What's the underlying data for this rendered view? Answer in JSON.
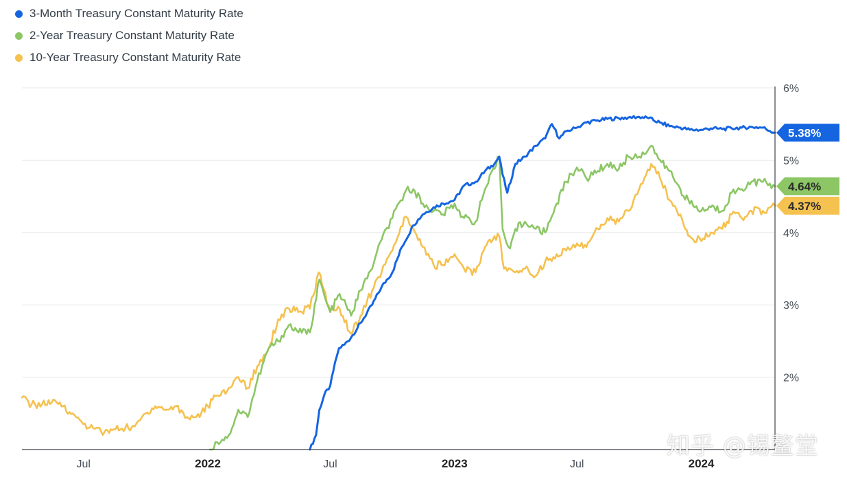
{
  "legend": [
    {
      "label": "3-Month Treasury Constant Maturity Rate",
      "color": "#1565e0"
    },
    {
      "label": "2-Year Treasury Constant Maturity Rate",
      "color": "#8cc665"
    },
    {
      "label": "10-Year Treasury Constant Maturity Rate",
      "color": "#f5c14f"
    }
  ],
  "watermark": "知乎 @锡鳌堂",
  "chart_data": {
    "type": "line",
    "x_axis": {
      "start": "2021-04-01",
      "end": "2024-04-19",
      "ticks": [
        {
          "date": "2021-07-01",
          "label": "Jul",
          "bold": false
        },
        {
          "date": "2022-01-01",
          "label": "2022",
          "bold": true
        },
        {
          "date": "2022-07-01",
          "label": "Jul",
          "bold": false
        },
        {
          "date": "2023-01-01",
          "label": "2023",
          "bold": true
        },
        {
          "date": "2023-07-01",
          "label": "Jul",
          "bold": false
        },
        {
          "date": "2024-01-01",
          "label": "2024",
          "bold": true
        }
      ]
    },
    "y_axis": {
      "min": 1.0,
      "max": 6.0,
      "position": "right",
      "ticks": [
        {
          "value": 2,
          "label": "2%"
        },
        {
          "value": 3,
          "label": "3%"
        },
        {
          "value": 4,
          "label": "4%"
        },
        {
          "value": 5,
          "label": "5%"
        },
        {
          "value": 6,
          "label": "6%"
        }
      ]
    },
    "grid": true,
    "legend_position": "top-left",
    "series": [
      {
        "name": "3-Month Treasury Constant Maturity Rate",
        "color": "#1565e0",
        "last_label": "5.38%",
        "points": [
          [
            "2022-06-01",
            1.0
          ],
          [
            "2022-06-10",
            1.2
          ],
          [
            "2022-06-15",
            1.55
          ],
          [
            "2022-06-22",
            1.75
          ],
          [
            "2022-07-01",
            1.88
          ],
          [
            "2022-07-08",
            2.2
          ],
          [
            "2022-07-14",
            2.4
          ],
          [
            "2022-07-22",
            2.45
          ],
          [
            "2022-08-01",
            2.55
          ],
          [
            "2022-08-15",
            2.75
          ],
          [
            "2022-09-01",
            3.0
          ],
          [
            "2022-09-15",
            3.25
          ],
          [
            "2022-10-01",
            3.45
          ],
          [
            "2022-10-15",
            3.8
          ],
          [
            "2022-11-01",
            4.1
          ],
          [
            "2022-11-15",
            4.25
          ],
          [
            "2022-12-01",
            4.35
          ],
          [
            "2022-12-15",
            4.4
          ],
          [
            "2023-01-01",
            4.45
          ],
          [
            "2023-01-15",
            4.65
          ],
          [
            "2023-02-01",
            4.7
          ],
          [
            "2023-02-15",
            4.85
          ],
          [
            "2023-03-01",
            4.95
          ],
          [
            "2023-03-08",
            5.05
          ],
          [
            "2023-03-13",
            4.8
          ],
          [
            "2023-03-20",
            4.55
          ],
          [
            "2023-04-01",
            4.95
          ],
          [
            "2023-04-15",
            5.05
          ],
          [
            "2023-05-01",
            5.2
          ],
          [
            "2023-05-15",
            5.3
          ],
          [
            "2023-05-25",
            5.5
          ],
          [
            "2023-06-05",
            5.3
          ],
          [
            "2023-06-15",
            5.4
          ],
          [
            "2023-07-01",
            5.45
          ],
          [
            "2023-07-15",
            5.52
          ],
          [
            "2023-08-01",
            5.55
          ],
          [
            "2023-08-15",
            5.57
          ],
          [
            "2023-09-01",
            5.58
          ],
          [
            "2023-09-15",
            5.59
          ],
          [
            "2023-10-01",
            5.6
          ],
          [
            "2023-10-15",
            5.58
          ],
          [
            "2023-11-01",
            5.52
          ],
          [
            "2023-11-15",
            5.47
          ],
          [
            "2023-12-01",
            5.45
          ],
          [
            "2023-12-15",
            5.42
          ],
          [
            "2024-01-01",
            5.42
          ],
          [
            "2024-01-15",
            5.44
          ],
          [
            "2024-02-01",
            5.43
          ],
          [
            "2024-02-15",
            5.44
          ],
          [
            "2024-03-01",
            5.45
          ],
          [
            "2024-03-15",
            5.46
          ],
          [
            "2024-04-01",
            5.45
          ],
          [
            "2024-04-19",
            5.38
          ]
        ]
      },
      {
        "name": "2-Year Treasury Constant Maturity Rate",
        "color": "#8cc665",
        "last_label": "4.64%",
        "points": [
          [
            "2022-01-04",
            1.0
          ],
          [
            "2022-01-15",
            1.1
          ],
          [
            "2022-02-01",
            1.2
          ],
          [
            "2022-02-15",
            1.55
          ],
          [
            "2022-03-01",
            1.45
          ],
          [
            "2022-03-15",
            1.95
          ],
          [
            "2022-04-01",
            2.4
          ],
          [
            "2022-04-15",
            2.5
          ],
          [
            "2022-05-01",
            2.72
          ],
          [
            "2022-05-15",
            2.62
          ],
          [
            "2022-06-01",
            2.62
          ],
          [
            "2022-06-15",
            3.35
          ],
          [
            "2022-06-25",
            3.05
          ],
          [
            "2022-07-01",
            2.9
          ],
          [
            "2022-07-15",
            3.15
          ],
          [
            "2022-08-01",
            2.85
          ],
          [
            "2022-08-15",
            3.2
          ],
          [
            "2022-09-01",
            3.5
          ],
          [
            "2022-09-15",
            3.9
          ],
          [
            "2022-10-01",
            4.2
          ],
          [
            "2022-10-21",
            4.58
          ],
          [
            "2022-11-01",
            4.6
          ],
          [
            "2022-11-15",
            4.4
          ],
          [
            "2022-12-01",
            4.3
          ],
          [
            "2022-12-15",
            4.25
          ],
          [
            "2023-01-01",
            4.4
          ],
          [
            "2023-01-15",
            4.2
          ],
          [
            "2023-02-01",
            4.15
          ],
          [
            "2023-02-15",
            4.6
          ],
          [
            "2023-03-01",
            4.88
          ],
          [
            "2023-03-08",
            5.05
          ],
          [
            "2023-03-13",
            4.05
          ],
          [
            "2023-03-24",
            3.78
          ],
          [
            "2023-04-01",
            4.05
          ],
          [
            "2023-04-15",
            4.15
          ],
          [
            "2023-05-01",
            4.05
          ],
          [
            "2023-05-15",
            4.0
          ],
          [
            "2023-06-01",
            4.4
          ],
          [
            "2023-06-15",
            4.7
          ],
          [
            "2023-07-01",
            4.9
          ],
          [
            "2023-07-15",
            4.75
          ],
          [
            "2023-08-01",
            4.85
          ],
          [
            "2023-08-15",
            4.95
          ],
          [
            "2023-09-01",
            4.88
          ],
          [
            "2023-09-15",
            5.05
          ],
          [
            "2023-10-01",
            5.05
          ],
          [
            "2023-10-19",
            5.2
          ],
          [
            "2023-11-01",
            5.0
          ],
          [
            "2023-11-15",
            4.85
          ],
          [
            "2023-12-01",
            4.6
          ],
          [
            "2023-12-15",
            4.4
          ],
          [
            "2024-01-01",
            4.3
          ],
          [
            "2024-01-15",
            4.35
          ],
          [
            "2024-02-01",
            4.3
          ],
          [
            "2024-02-15",
            4.55
          ],
          [
            "2024-03-01",
            4.6
          ],
          [
            "2024-03-15",
            4.7
          ],
          [
            "2024-04-01",
            4.7
          ],
          [
            "2024-04-19",
            4.64
          ]
        ]
      },
      {
        "name": "10-Year Treasury Constant Maturity Rate",
        "color": "#f5c14f",
        "last_label": "4.37%",
        "points": [
          [
            "2021-04-01",
            1.72
          ],
          [
            "2021-04-15",
            1.62
          ],
          [
            "2021-05-01",
            1.63
          ],
          [
            "2021-05-15",
            1.65
          ],
          [
            "2021-06-01",
            1.6
          ],
          [
            "2021-06-15",
            1.5
          ],
          [
            "2021-07-01",
            1.35
          ],
          [
            "2021-07-15",
            1.3
          ],
          [
            "2021-08-01",
            1.24
          ],
          [
            "2021-08-15",
            1.28
          ],
          [
            "2021-09-01",
            1.3
          ],
          [
            "2021-09-15",
            1.32
          ],
          [
            "2021-10-01",
            1.5
          ],
          [
            "2021-10-15",
            1.6
          ],
          [
            "2021-11-01",
            1.55
          ],
          [
            "2021-11-15",
            1.6
          ],
          [
            "2021-12-01",
            1.45
          ],
          [
            "2021-12-15",
            1.45
          ],
          [
            "2022-01-01",
            1.6
          ],
          [
            "2022-01-15",
            1.75
          ],
          [
            "2022-02-01",
            1.85
          ],
          [
            "2022-02-15",
            2.0
          ],
          [
            "2022-03-01",
            1.85
          ],
          [
            "2022-03-15",
            2.15
          ],
          [
            "2022-04-01",
            2.4
          ],
          [
            "2022-04-15",
            2.8
          ],
          [
            "2022-05-01",
            2.95
          ],
          [
            "2022-05-15",
            2.9
          ],
          [
            "2022-06-01",
            2.95
          ],
          [
            "2022-06-14",
            3.45
          ],
          [
            "2022-07-01",
            2.9
          ],
          [
            "2022-07-15",
            2.95
          ],
          [
            "2022-08-01",
            2.6
          ],
          [
            "2022-08-15",
            2.85
          ],
          [
            "2022-09-01",
            3.2
          ],
          [
            "2022-09-15",
            3.45
          ],
          [
            "2022-10-01",
            3.75
          ],
          [
            "2022-10-21",
            4.22
          ],
          [
            "2022-11-01",
            4.05
          ],
          [
            "2022-11-15",
            3.8
          ],
          [
            "2022-12-01",
            3.55
          ],
          [
            "2022-12-15",
            3.55
          ],
          [
            "2023-01-01",
            3.7
          ],
          [
            "2023-01-15",
            3.5
          ],
          [
            "2023-02-01",
            3.45
          ],
          [
            "2023-02-15",
            3.8
          ],
          [
            "2023-03-01",
            3.95
          ],
          [
            "2023-03-08",
            3.95
          ],
          [
            "2023-03-15",
            3.5
          ],
          [
            "2023-04-01",
            3.45
          ],
          [
            "2023-04-15",
            3.5
          ],
          [
            "2023-05-01",
            3.4
          ],
          [
            "2023-05-15",
            3.6
          ],
          [
            "2023-06-01",
            3.7
          ],
          [
            "2023-06-15",
            3.75
          ],
          [
            "2023-07-01",
            3.85
          ],
          [
            "2023-07-15",
            3.8
          ],
          [
            "2023-08-01",
            4.05
          ],
          [
            "2023-08-15",
            4.2
          ],
          [
            "2023-09-01",
            4.15
          ],
          [
            "2023-09-15",
            4.3
          ],
          [
            "2023-10-01",
            4.6
          ],
          [
            "2023-10-19",
            4.95
          ],
          [
            "2023-11-01",
            4.75
          ],
          [
            "2023-11-15",
            4.45
          ],
          [
            "2023-12-01",
            4.25
          ],
          [
            "2023-12-15",
            3.95
          ],
          [
            "2024-01-01",
            3.88
          ],
          [
            "2024-01-15",
            4.0
          ],
          [
            "2024-02-01",
            4.05
          ],
          [
            "2024-02-15",
            4.25
          ],
          [
            "2024-03-01",
            4.2
          ],
          [
            "2024-03-15",
            4.3
          ],
          [
            "2024-04-01",
            4.3
          ],
          [
            "2024-04-19",
            4.37
          ]
        ]
      }
    ]
  }
}
